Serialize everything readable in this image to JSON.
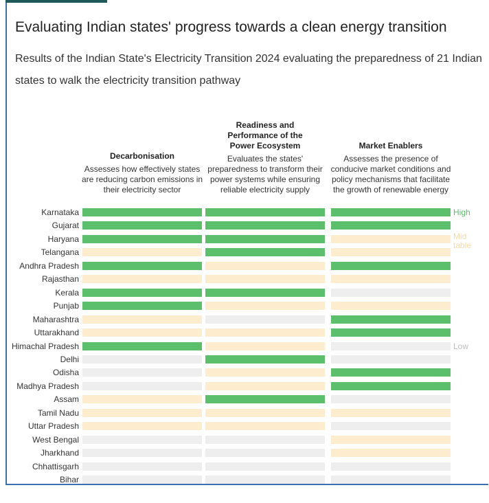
{
  "chart_data": {
    "type": "heatmap",
    "title": "Evaluating Indian states' progress towards a clean energy transition",
    "subtitle": "Results of the Indian State's Electricity Transition 2024 evaluating the preparedness of 21 Indian states to walk the electricity transition pathway",
    "categories": [
      "Karnataka",
      "Gujarat",
      "Haryana",
      "Telangana",
      "Andhra Pradesh",
      "Rajasthan",
      "Kerala",
      "Punjab",
      "Maharashtra",
      "Uttarakhand",
      "Himachal Pradesh",
      "Delhi",
      "Odisha",
      "Madhya Pradesh",
      "Assam",
      "Tamil Nadu",
      "Uttar Pradesh",
      "West Bengal",
      "Jharkhand",
      "Chhattisgarh",
      "Bihar"
    ],
    "levels": [
      {
        "name": "High",
        "color": "#5cbf6c",
        "text_color": "#5cbf6c"
      },
      {
        "name": "Mid table",
        "color": "#fdeccd",
        "text_color": "#f6dba6"
      },
      {
        "name": "Low",
        "color": "#eeeeee",
        "text_color": "#bdbdbd"
      }
    ],
    "series": [
      {
        "name": "Decarbonisation",
        "description": "Assesses how effectively states are reducing carbon emissions in their electricity sector",
        "values": [
          "High",
          "High",
          "High",
          "Mid table",
          "High",
          "Mid table",
          "High",
          "High",
          "Mid table",
          "Mid table",
          "High",
          "Low",
          "Low",
          "Low",
          "Mid table",
          "Mid table",
          "Mid table",
          "Low",
          "Low",
          "Low",
          "Low"
        ]
      },
      {
        "name": "Readiness and Performance of the Power Ecosystem",
        "description": "Evaluates the states' preparedness to transform their power systems while ensuring reliable electricity supply",
        "values": [
          "High",
          "High",
          "High",
          "High",
          "Mid table",
          "Mid table",
          "High",
          "Mid table",
          "Low",
          "Mid table",
          "Mid table",
          "High",
          "Mid table",
          "Mid table",
          "High",
          "Mid table",
          "Mid table",
          "Low",
          "Low",
          "Low",
          "Low"
        ]
      },
      {
        "name": "Market Enablers",
        "description": "Assesses the presence of conducive market conditions and policy mechanisms that facilitate the growth of  renewable energy",
        "values": [
          "High",
          "High",
          "Mid table",
          "Mid table",
          "High",
          "Mid table",
          "Low",
          "Mid table",
          "High",
          "High",
          "Low",
          "Low",
          "High",
          "High",
          "Low",
          "Mid table",
          "Low",
          "Mid table",
          "Mid table",
          "Low",
          "Low"
        ]
      }
    ]
  }
}
